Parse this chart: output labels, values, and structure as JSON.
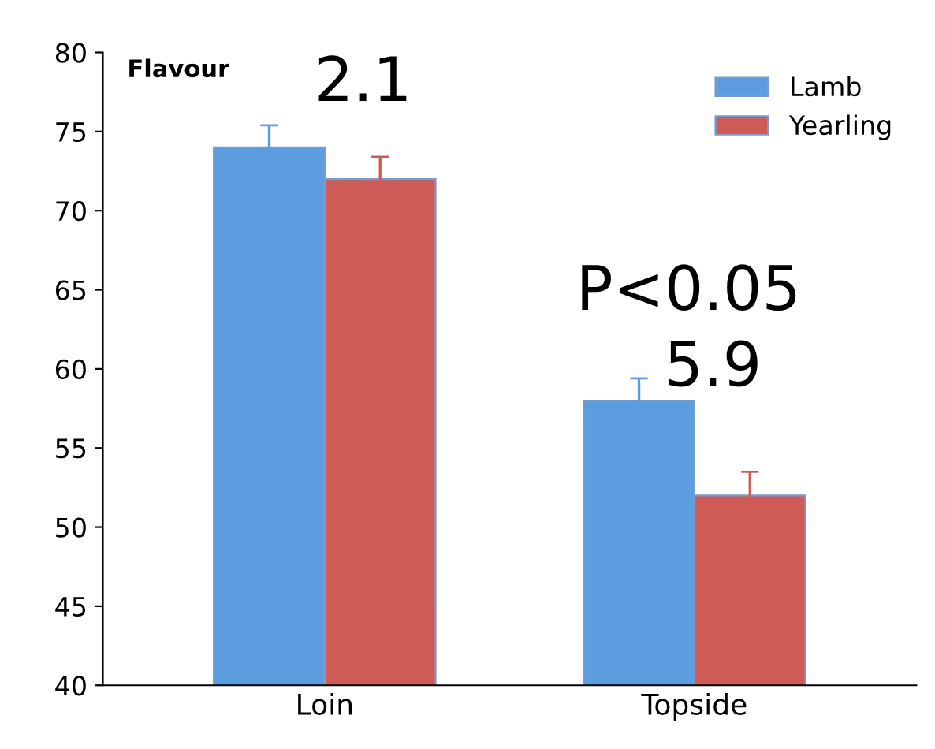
{
  "chart_data": {
    "type": "bar",
    "title": "Flavour",
    "categories": [
      "Loin",
      "Topside"
    ],
    "series": [
      {
        "name": "Lamb",
        "color": "#5c9de0",
        "values": [
          74,
          58
        ],
        "errors": [
          1.4,
          1.4
        ]
      },
      {
        "name": "Yearling",
        "color": "#cf5b57",
        "values": [
          72,
          52
        ],
        "errors": [
          1.4,
          1.5
        ]
      }
    ],
    "ylim": [
      40,
      80
    ],
    "yticks": [
      40,
      45,
      50,
      55,
      60,
      65,
      70,
      75,
      80
    ],
    "grid": false,
    "legend": "top right",
    "annotations": [
      "2.1",
      "P<0.05",
      "5.9"
    ]
  }
}
